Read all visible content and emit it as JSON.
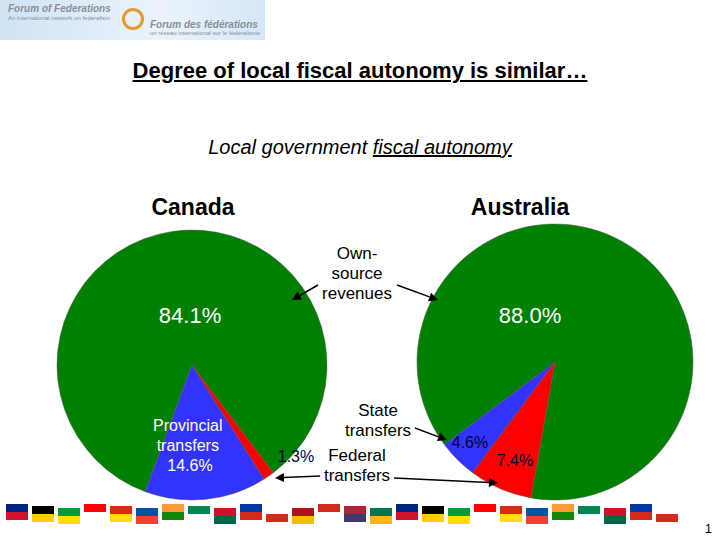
{
  "header": {
    "logo_en": "Forum of Federations",
    "logo_en_sub": "An international network on federalism",
    "logo_fr": "Forum des fédérations",
    "logo_fr_sub": "un réseau international sur le fédéralisme"
  },
  "title": "Degree of local fiscal autonomy is similar…",
  "subtitle": "Local government fiscal autonomy",
  "chart_data": [
    {
      "type": "pie",
      "title": "Canada",
      "categories": [
        "Own-source revenues",
        "Provincial transfers",
        "Federal transfers"
      ],
      "values": [
        84.1,
        14.6,
        1.3
      ],
      "value_labels": [
        "84.1%",
        "Provincial transfers 14.6%",
        "1.3%"
      ],
      "colors": [
        "#008000",
        "#3333ff",
        "#ff0000"
      ],
      "data_labels": true
    },
    {
      "type": "pie",
      "title": "Australia",
      "categories": [
        "Own-source revenues",
        "State transfers",
        "Federal transfers"
      ],
      "values": [
        88.0,
        4.6,
        7.4
      ],
      "value_labels": [
        "88.0%",
        "4.6%",
        "7.4%"
      ],
      "colors": [
        "#008000",
        "#3333ff",
        "#ff0000"
      ],
      "data_labels": true
    }
  ],
  "annotations": [
    "Own-source revenues",
    "State transfers",
    "Federal transfers"
  ],
  "page": 1
}
